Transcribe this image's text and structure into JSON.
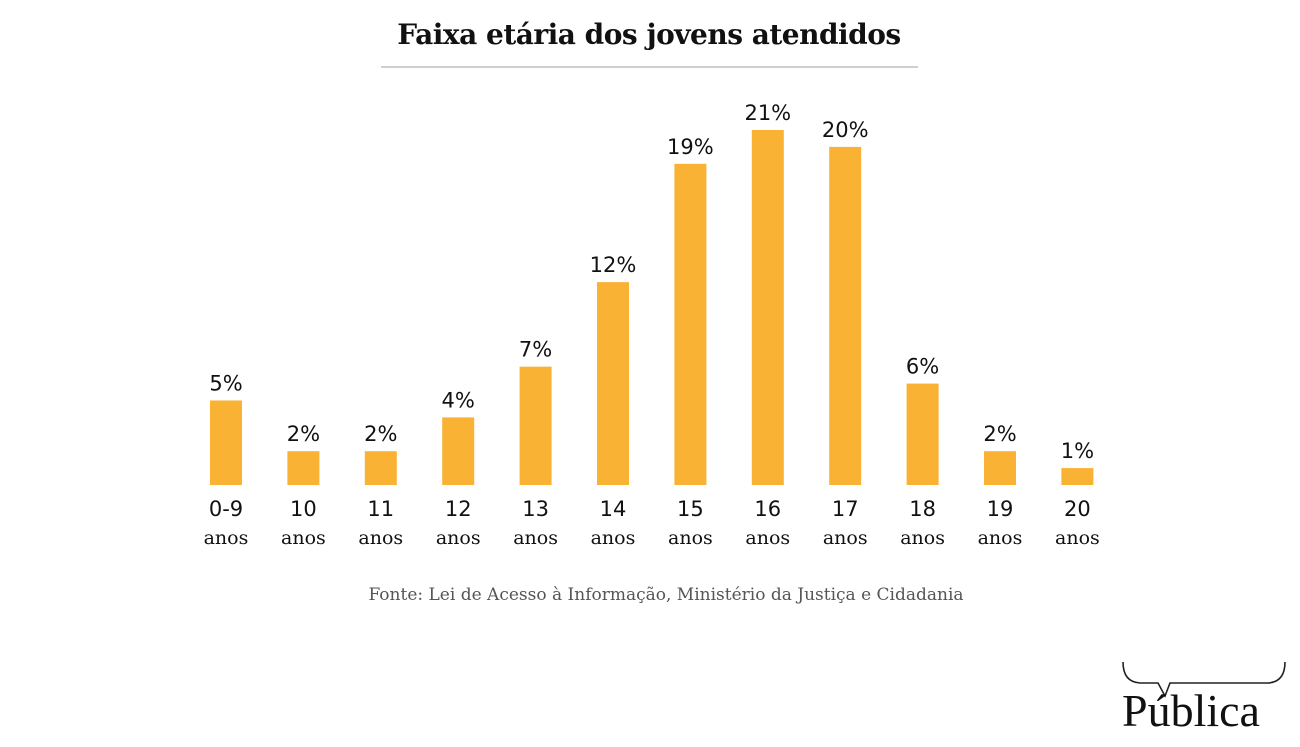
{
  "chart_data": {
    "type": "bar",
    "title": "Faixa etária dos jovens atendidos",
    "xlabel": "",
    "ylabel": "",
    "ylim": [
      0,
      21
    ],
    "grid": false,
    "categories": [
      [
        "0-9",
        "anos"
      ],
      [
        "10",
        "anos"
      ],
      [
        "11",
        "anos"
      ],
      [
        "12",
        "anos"
      ],
      [
        "13",
        "anos"
      ],
      [
        "14",
        "anos"
      ],
      [
        "15",
        "anos"
      ],
      [
        "16",
        "anos"
      ],
      [
        "17",
        "anos"
      ],
      [
        "18",
        "anos"
      ],
      [
        "19",
        "anos"
      ],
      [
        "20",
        "anos"
      ]
    ],
    "values": [
      5,
      2,
      2,
      4,
      7,
      12,
      19,
      21,
      20,
      6,
      2,
      1
    ],
    "value_labels": [
      "5%",
      "2%",
      "2%",
      "4%",
      "7%",
      "12%",
      "19%",
      "21%",
      "20%",
      "6%",
      "2%",
      "1%"
    ],
    "unit": "%",
    "bar_color": "#F9B233",
    "source": "Fonte: Lei de Acesso à Informação, Ministério da Justiça e Cidadania"
  },
  "logo": {
    "text": "Pública"
  }
}
